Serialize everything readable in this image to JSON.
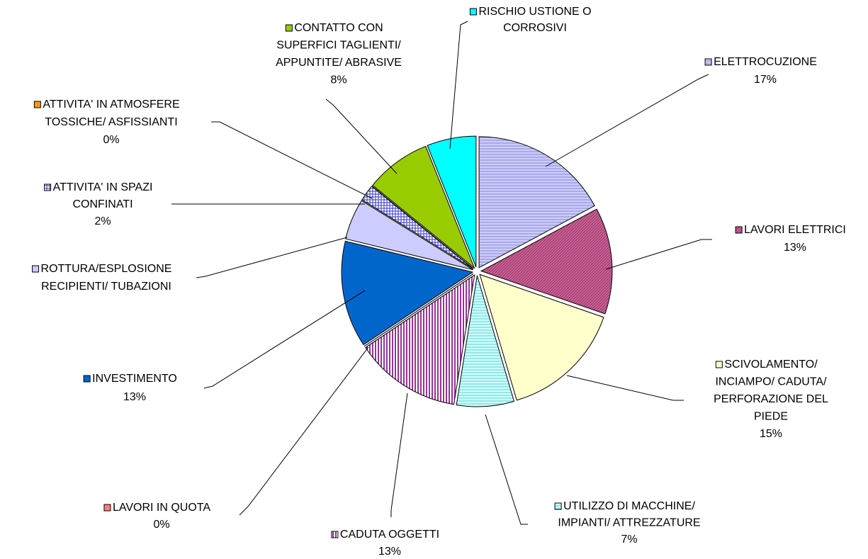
{
  "chart_data": {
    "type": "pie",
    "categories": [
      [
        "ELETTROCUZIONE"
      ],
      [
        "LAVORI ELETTRICI"
      ],
      [
        "SCIVOLAMENTO/",
        "INCIAMPO/ CADUTA/",
        "PERFORAZIONE DEL",
        "PIEDE"
      ],
      [
        "UTILIZZO DI  MACCHINE/",
        "IMPIANTI/ ATTREZZATURE"
      ],
      [
        "CADUTA OGGETTI"
      ],
      [
        "LAVORI IN QUOTA"
      ],
      [
        "INVESTIMENTO"
      ],
      [
        "ROTTURA/ESPLOSIONE",
        "RECIPIENTI/ TUBAZIONI"
      ],
      [
        "ATTIVITA' IN SPAZI",
        "CONFINATI"
      ],
      [
        "ATTIVITA' IN ATMOSFERE",
        "TOSSICHE/ ASFISSIANTI"
      ],
      [
        "CONTATTO CON",
        "SUPERFICI TAGLIENTI/",
        "APPUNTITE/ ABRASIVE"
      ],
      [
        "RISCHIO USTIONE O",
        "CORROSIVI"
      ]
    ],
    "values": [
      17,
      13,
      15,
      7,
      13,
      0,
      13,
      5,
      2,
      0,
      8,
      6
    ],
    "value_labels": [
      "17%",
      "13%",
      "15%",
      "7%",
      "13%",
      "0%",
      "13%",
      null,
      "2%",
      "0%",
      "8%",
      null
    ],
    "colors": [
      "#ccccff",
      "#cc6699",
      "#ffffcc",
      "#ccffff",
      "#993399",
      "#ff8080",
      "#0066cc",
      "#ccccff",
      "#3333cc",
      "#ff9900",
      "#99cc00",
      "#00ffff"
    ]
  }
}
